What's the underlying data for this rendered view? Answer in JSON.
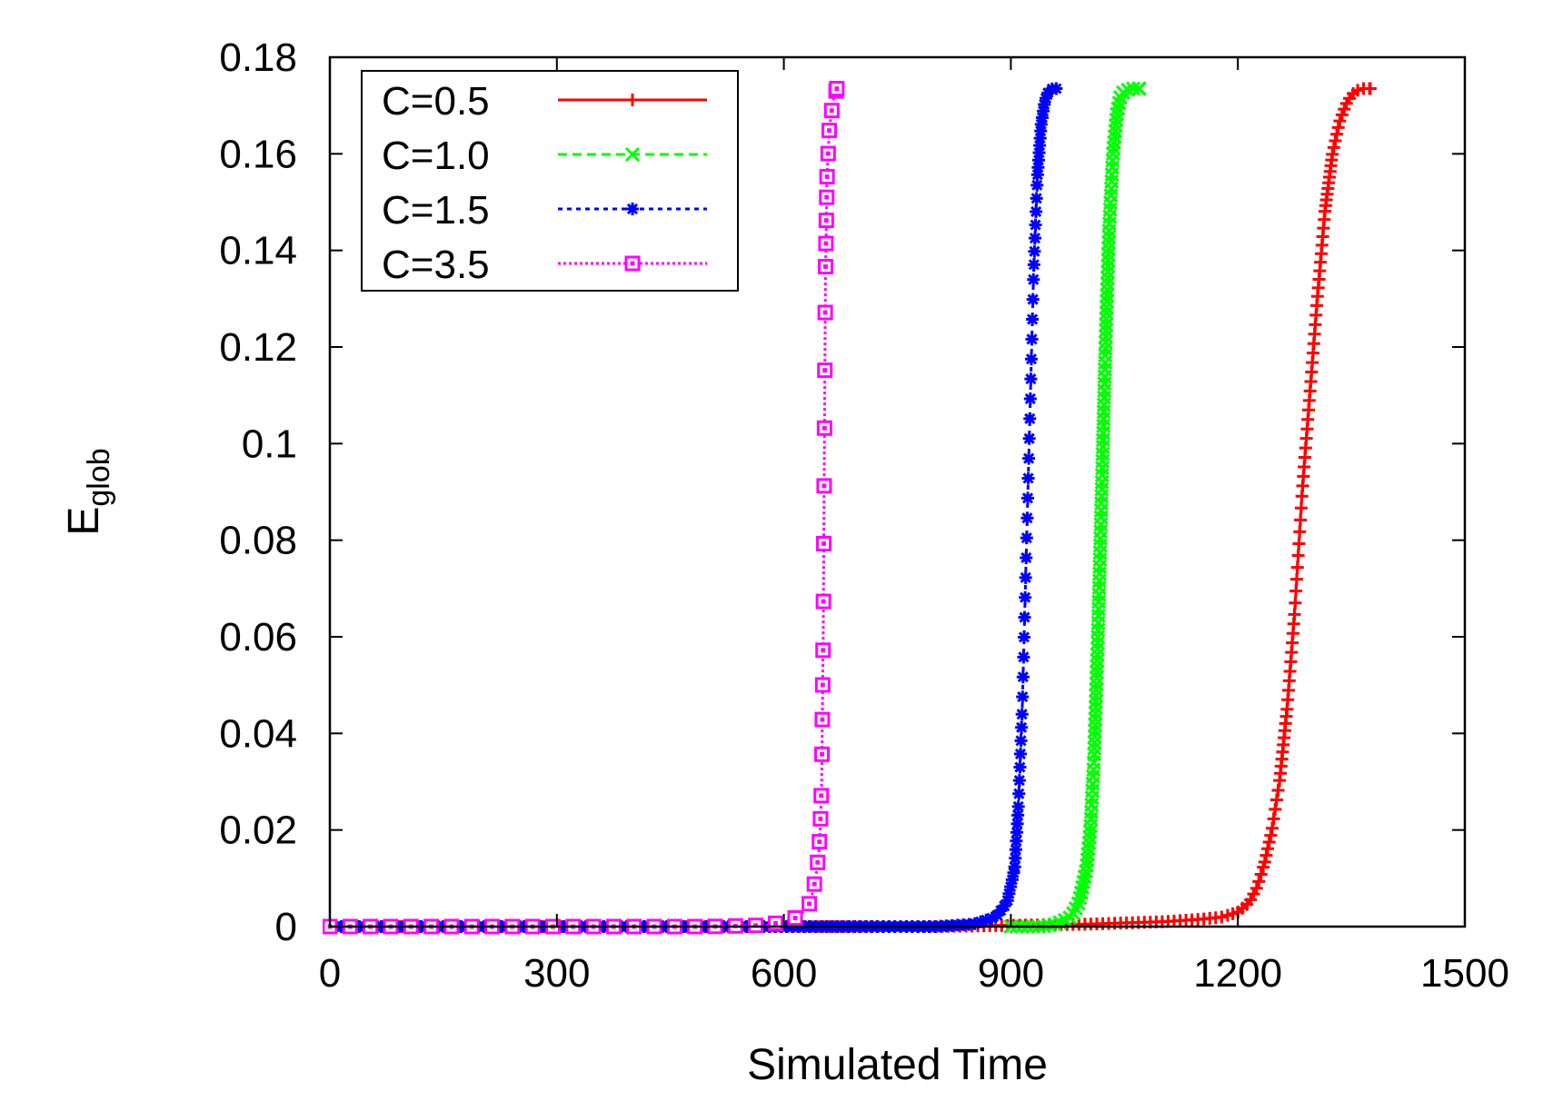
{
  "chart_data": {
    "type": "line",
    "title": "",
    "xlabel": "Simulated Time",
    "ylabel_main": "E",
    "ylabel_sub": "glob",
    "xlim": [
      0,
      1500
    ],
    "ylim": [
      0,
      0.18
    ],
    "xticks": [
      0,
      300,
      600,
      900,
      1200,
      1500
    ],
    "xtick_labels": [
      "0",
      "300",
      "600",
      "900",
      "1200",
      "1500"
    ],
    "yticks": [
      0,
      0.02,
      0.04,
      0.06,
      0.08,
      0.1,
      0.12,
      0.14,
      0.16,
      0.18
    ],
    "ytick_labels": [
      "0",
      "0.02",
      "0.04",
      "0.06",
      "0.08",
      "0.1",
      "0.12",
      "0.14",
      "0.16",
      "0.18"
    ],
    "grid": false,
    "legend_position": "top-left",
    "series": [
      {
        "name": "C=0.5",
        "color": "#ff0000",
        "marker": "plus",
        "dash": "solid",
        "x": [
          0,
          200,
          400,
          600,
          800,
          1000,
          1100,
          1150,
          1180,
          1200,
          1215,
          1225,
          1235,
          1245,
          1255,
          1265,
          1275,
          1285,
          1295,
          1305,
          1315,
          1325,
          1335,
          1345,
          1355,
          1365,
          1375
        ],
        "y": [
          0,
          0,
          0,
          0,
          0,
          0.0005,
          0.001,
          0.0015,
          0.002,
          0.003,
          0.005,
          0.008,
          0.013,
          0.02,
          0.03,
          0.045,
          0.065,
          0.09,
          0.11,
          0.13,
          0.148,
          0.16,
          0.167,
          0.171,
          0.173,
          0.1735,
          0.1735
        ]
      },
      {
        "name": "C=1.0",
        "color": "#00ff00",
        "marker": "cross",
        "dash": "dashed",
        "x": [
          900,
          940,
          960,
          980,
          990,
          1000,
          1005,
          1010,
          1015,
          1020,
          1025,
          1030,
          1035,
          1040,
          1045,
          1050,
          1060,
          1070
        ],
        "y": [
          0,
          0,
          0.0005,
          0.002,
          0.005,
          0.012,
          0.02,
          0.035,
          0.06,
          0.09,
          0.12,
          0.145,
          0.16,
          0.168,
          0.172,
          0.173,
          0.1735,
          0.1735
        ]
      },
      {
        "name": "C=1.5",
        "color": "#0000ff",
        "marker": "star",
        "dash": "dotted",
        "x": [
          0,
          600,
          700,
          800,
          850,
          880,
          895,
          905,
          910,
          915,
          920,
          925,
          930,
          935,
          940,
          945,
          950,
          955,
          960
        ],
        "y": [
          0,
          0,
          0,
          0,
          0.0005,
          0.002,
          0.005,
          0.012,
          0.025,
          0.045,
          0.075,
          0.105,
          0.135,
          0.155,
          0.166,
          0.171,
          0.173,
          0.1735,
          0.1735
        ]
      },
      {
        "name": "C=3.5",
        "color": "#ff00ff",
        "marker": "square",
        "dash": "dotted-fine",
        "x": [
          0,
          100,
          200,
          300,
          400,
          500,
          580,
          620,
          635,
          642,
          646,
          648,
          650,
          651,
          652,
          653,
          654,
          655,
          657,
          660,
          665,
          670
        ],
        "y": [
          0,
          0,
          0,
          0,
          0,
          0,
          0.0003,
          0.002,
          0.005,
          0.01,
          0.015,
          0.02,
          0.03,
          0.045,
          0.06,
          0.085,
          0.11,
          0.135,
          0.155,
          0.165,
          0.171,
          0.1735
        ]
      }
    ]
  }
}
